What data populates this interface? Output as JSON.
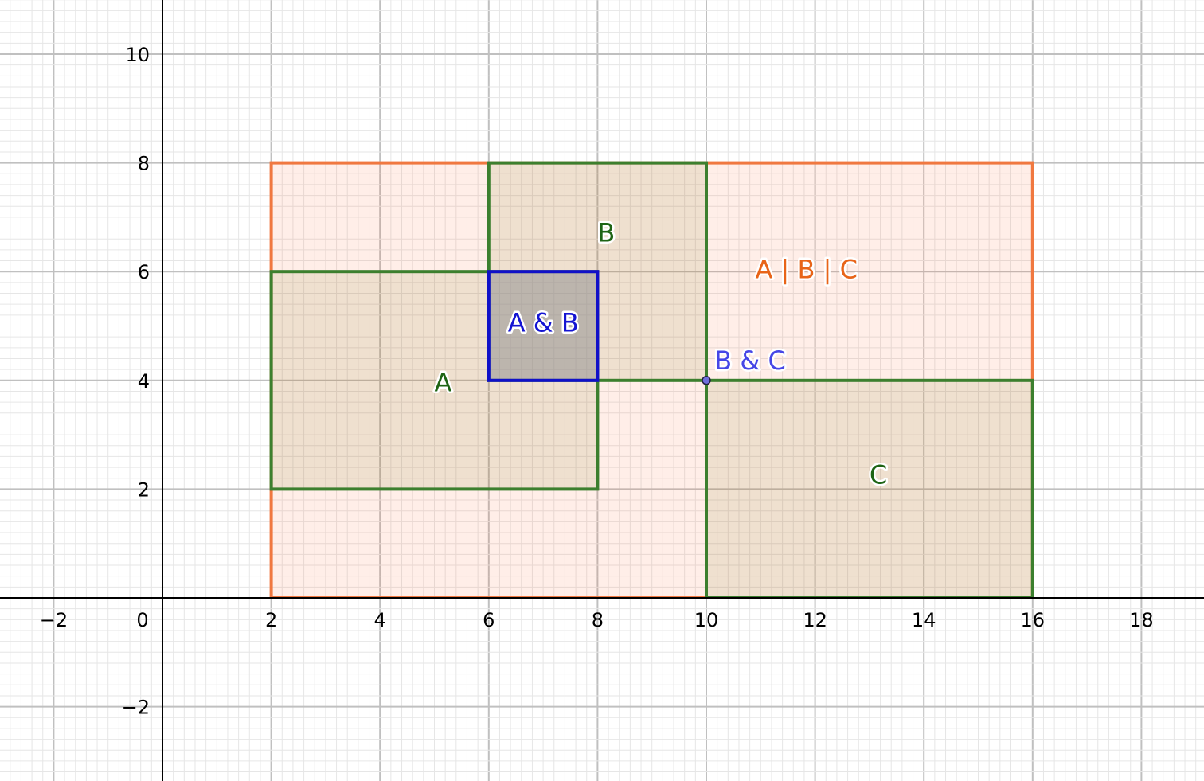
{
  "colors": {
    "union_fill": "#FF5A1E",
    "union_stroke": "#F07840",
    "set_fill": "#7A7A22",
    "set_stroke": "#3C7F2E",
    "intersect_fill": "#9090A0",
    "intersect_stroke": "#1010C8",
    "union_label": "#E86418",
    "set_label": "#1E6414",
    "ab_label": "#1414D2",
    "bc_label": "#4646E6",
    "point_fill": "#6E6EDC",
    "axis": "#000000",
    "grid_major": "#c0c0c0",
    "grid_minor": "#e6e6e6"
  },
  "axes": {
    "x_ticks": [
      "−2",
      "0",
      "2",
      "4",
      "6",
      "8",
      "10",
      "12",
      "14",
      "16",
      "18"
    ],
    "y_ticks": [
      "−2",
      "2",
      "4",
      "6",
      "8",
      "10"
    ]
  },
  "shapes": {
    "union": {
      "label": "A | B | C",
      "x": [
        2,
        16
      ],
      "y": [
        0,
        8
      ]
    },
    "A": {
      "label": "A",
      "x": [
        2,
        8
      ],
      "y": [
        2,
        6
      ]
    },
    "B": {
      "label": "B",
      "x": [
        6,
        10
      ],
      "y": [
        4,
        8
      ]
    },
    "C": {
      "label": "C",
      "x": [
        10,
        16
      ],
      "y": [
        0,
        4
      ]
    },
    "AB": {
      "label": "A & B",
      "x": [
        6,
        8
      ],
      "y": [
        4,
        6
      ]
    }
  },
  "point": {
    "label": "B & C",
    "x": 10,
    "y": 4
  }
}
